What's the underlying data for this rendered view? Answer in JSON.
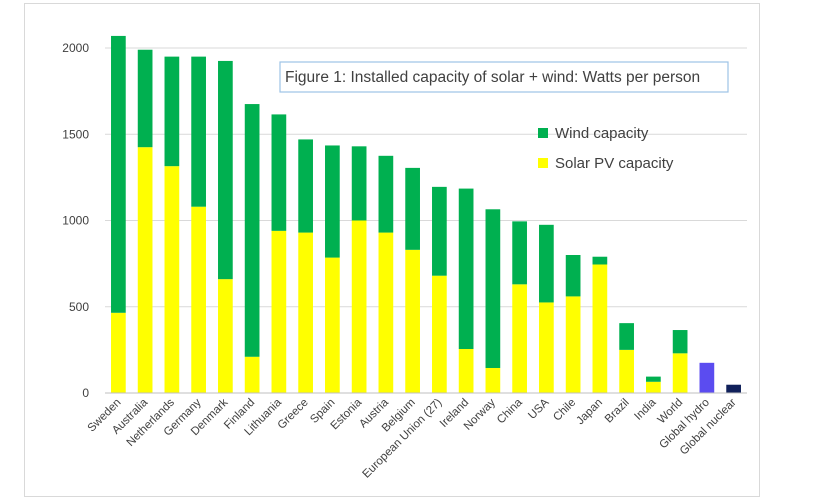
{
  "chart_data": {
    "type": "bar",
    "stacked": true,
    "title": "Figure 1: Installed capacity of solar + wind: Watts per person",
    "xlabel": "",
    "ylabel": "",
    "ylim": [
      0,
      2000
    ],
    "yticks": [
      0,
      500,
      1000,
      1500,
      2000
    ],
    "grid": true,
    "legend_position": "upper-right",
    "categories": [
      "Sweden",
      "Australia",
      "Netherlands",
      "Germany",
      "Denmark",
      "Finland",
      "Lithuania",
      "Greece",
      "Spain",
      "Estonia",
      "Austria",
      "Belgium",
      "European Union (27)",
      "Ireland",
      "Norway",
      "China",
      "USA",
      "Chile",
      "Japan",
      "Brazil",
      "India",
      "World",
      "Global hydro",
      "Global nuclear"
    ],
    "series": [
      {
        "name": "Solar PV capacity",
        "color": "#ffff00",
        "values": [
          465,
          1425,
          1315,
          1080,
          660,
          210,
          940,
          930,
          785,
          1000,
          930,
          830,
          680,
          255,
          145,
          630,
          525,
          560,
          745,
          250,
          65,
          230,
          0,
          0
        ]
      },
      {
        "name": "Wind capacity",
        "color": "#00b050",
        "values": [
          1605,
          565,
          635,
          870,
          1265,
          1465,
          675,
          540,
          650,
          430,
          445,
          475,
          515,
          930,
          920,
          365,
          450,
          240,
          45,
          155,
          30,
          135,
          0,
          0
        ]
      },
      {
        "name": "Global hydro",
        "color": "#5b4cf0",
        "values": [
          0,
          0,
          0,
          0,
          0,
          0,
          0,
          0,
          0,
          0,
          0,
          0,
          0,
          0,
          0,
          0,
          0,
          0,
          0,
          0,
          0,
          0,
          175,
          0
        ]
      },
      {
        "name": "Global nuclear",
        "color": "#10205a",
        "values": [
          0,
          0,
          0,
          0,
          0,
          0,
          0,
          0,
          0,
          0,
          0,
          0,
          0,
          0,
          0,
          0,
          0,
          0,
          0,
          0,
          0,
          0,
          0,
          48
        ]
      }
    ],
    "legend": [
      {
        "label": "Wind capacity",
        "color": "#00b050"
      },
      {
        "label": "Solar PV capacity",
        "color": "#ffff00"
      }
    ]
  }
}
